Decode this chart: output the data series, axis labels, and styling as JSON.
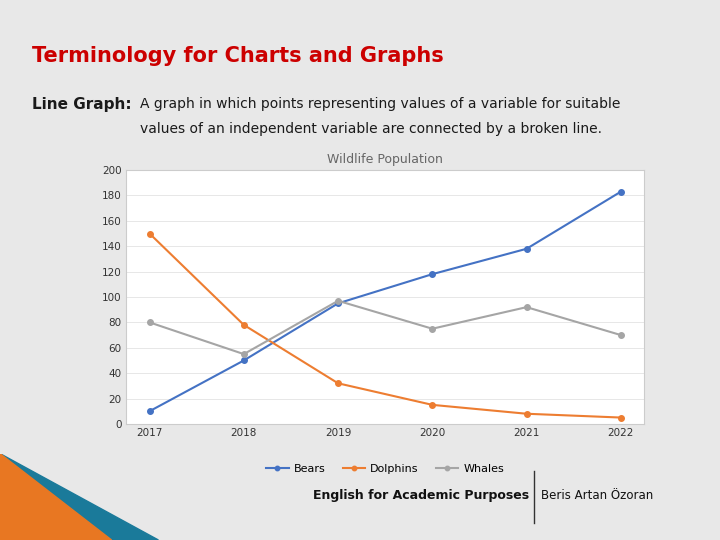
{
  "title": "Terminology for Charts and Graphs",
  "subtitle_bold": "Line Graph:",
  "subtitle_line1": "A graph in which points representing values of a variable for suitable",
  "subtitle_line2": "values of an independent variable are connected by a broken line.",
  "chart_title": "Wildlife Population",
  "years": [
    2017,
    2018,
    2019,
    2020,
    2021,
    2022
  ],
  "bears": [
    10,
    50,
    95,
    118,
    138,
    183
  ],
  "dolphins": [
    150,
    78,
    32,
    15,
    8,
    5
  ],
  "whales": [
    80,
    55,
    97,
    75,
    92,
    70
  ],
  "bears_color": "#4472C4",
  "dolphins_color": "#ED7D31",
  "whales_color": "#A5A5A5",
  "slide_bg": "#E8E8E8",
  "title_color": "#CC0000",
  "text_color": "#1a1a1a",
  "bottom_bg": "#29ABD4",
  "bottom_orange": "#E87722",
  "bottom_dark_teal": "#1A7A9A",
  "bottom_text": "English for Academic Purposes",
  "bottom_author": "Beris Artan Özoran",
  "ylim": [
    0,
    200
  ],
  "ytick_labels": [
    "0",
    "20",
    "40",
    "60",
    "80",
    "100",
    "120",
    "140",
    "160",
    "180",
    "200"
  ],
  "ytick_values": [
    0,
    20,
    40,
    60,
    80,
    100,
    120,
    140,
    160,
    180,
    200
  ]
}
